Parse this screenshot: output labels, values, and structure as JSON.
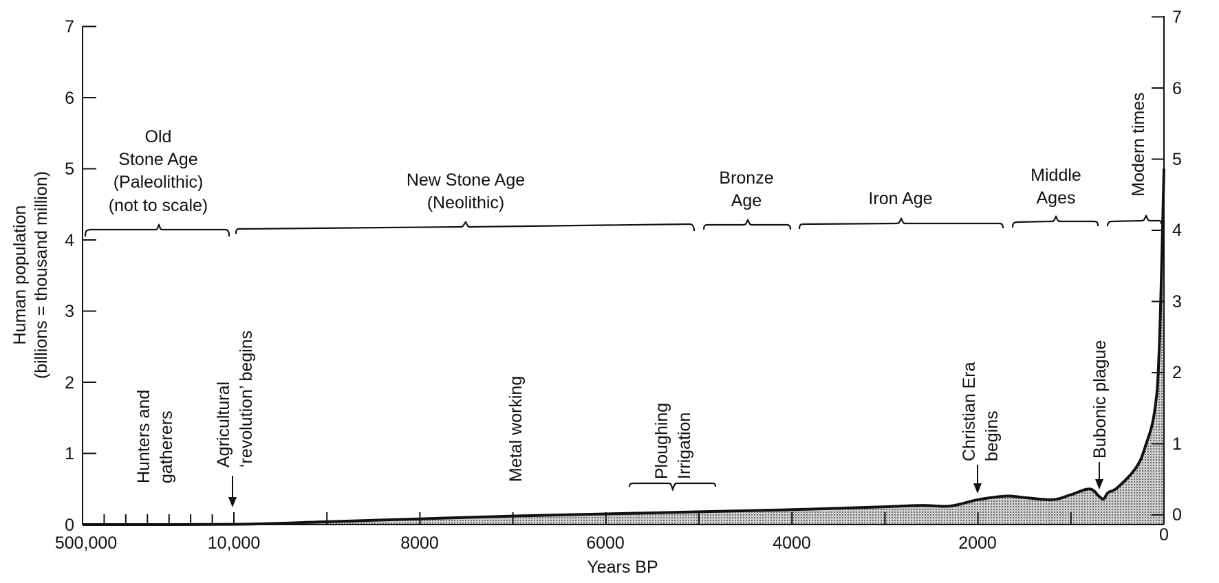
{
  "chart_data": {
    "type": "area",
    "xlabel": "Years BP",
    "ylabel_line1": "Human population",
    "ylabel_line2": "(billions = thousand million)",
    "ylim": [
      0,
      7
    ],
    "x_tick_labels": [
      "500,000",
      "10,000",
      "8000",
      "6000",
      "4000",
      "2000",
      "0"
    ],
    "x_tick_values": [
      500000,
      10000,
      8000,
      6000,
      4000,
      2000,
      0
    ],
    "y_ticks_left": [
      "0",
      "1",
      "2",
      "3",
      "4",
      "5",
      "6",
      "7"
    ],
    "y_ticks_right": [
      "0",
      "1",
      "2",
      "3",
      "4",
      "5",
      "6",
      "7"
    ],
    "note": "x axis from 500,000 to 10,000 BP not to scale",
    "series": [
      {
        "x": [
          500000,
          10000,
          9000,
          8000,
          7000,
          6000,
          5000,
          4000,
          3000,
          2600,
          2300,
          2000,
          1700,
          1500,
          1200,
          1000,
          800,
          700,
          650,
          600,
          500,
          300,
          200,
          100,
          50,
          0
        ],
        "y": [
          0.0,
          0.004,
          0.04,
          0.08,
          0.12,
          0.15,
          0.18,
          0.21,
          0.25,
          0.27,
          0.26,
          0.35,
          0.4,
          0.38,
          0.35,
          0.42,
          0.5,
          0.4,
          0.36,
          0.45,
          0.52,
          0.8,
          1.1,
          1.6,
          2.5,
          5.0
        ]
      }
    ],
    "periods": [
      {
        "lines": [
          "Old",
          "Stone Age",
          "(Paleolithic)",
          "(not to scale)"
        ]
      },
      {
        "lines": [
          "New Stone Age",
          "(Neolithic)"
        ]
      },
      {
        "lines": [
          "Bronze",
          "Age"
        ]
      },
      {
        "lines": [
          "Iron Age"
        ]
      },
      {
        "lines": [
          "Middle",
          "Ages"
        ]
      },
      {
        "lines": [
          "Modern times"
        ]
      }
    ],
    "events": [
      {
        "lines": [
          "Hunters and",
          "gatherers"
        ]
      },
      {
        "lines": [
          "Agricultural",
          "‘revolution’ begins"
        ]
      },
      {
        "lines": [
          "Metal working"
        ]
      },
      {
        "lines": [
          "Ploughing",
          "Irrigation"
        ]
      },
      {
        "lines": [
          "Christian Era",
          "begins"
        ]
      },
      {
        "lines": [
          "Bubonic plague"
        ]
      }
    ]
  }
}
